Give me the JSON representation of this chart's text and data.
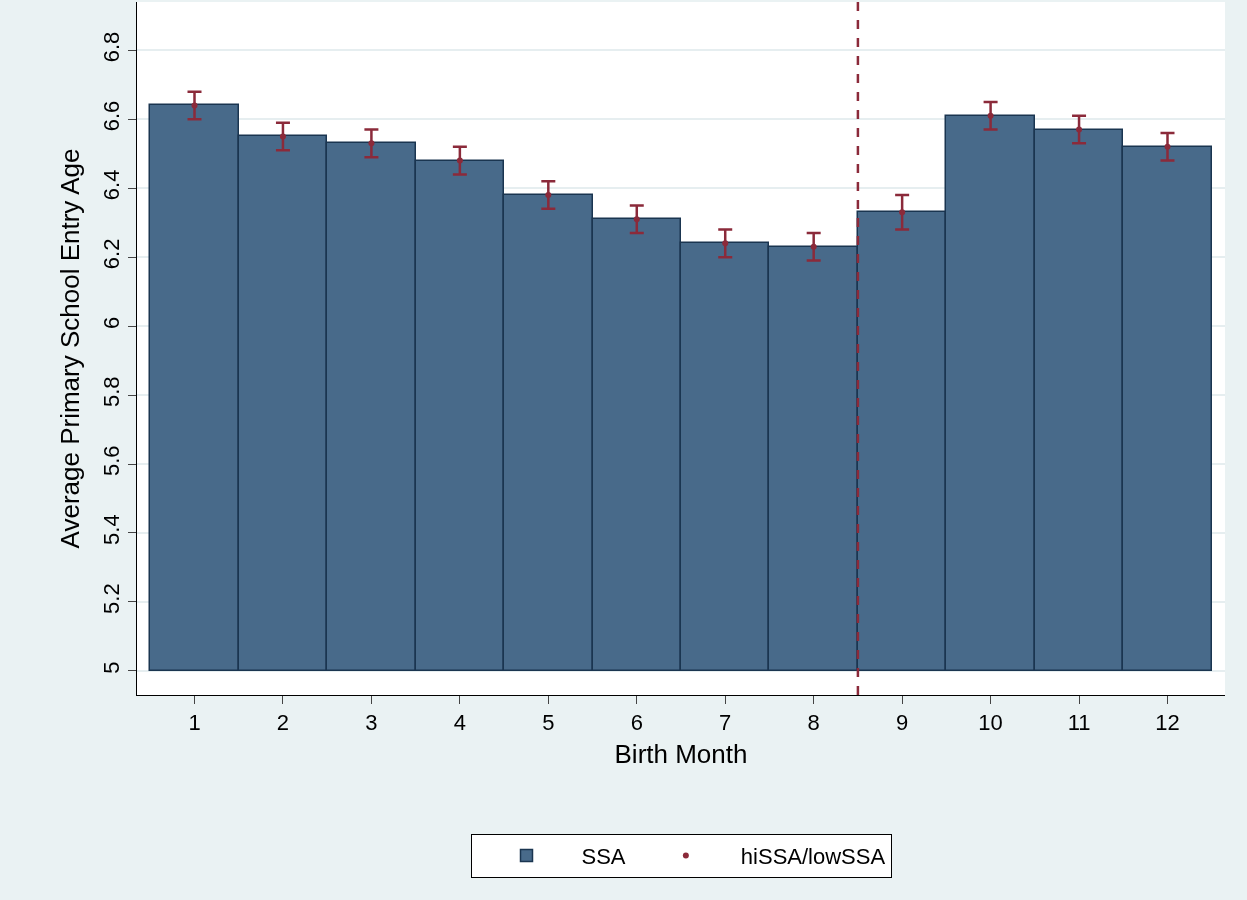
{
  "chart_data": {
    "type": "bar",
    "xlabel": "Birth Month",
    "ylabel": "Average Primary School Entry Age",
    "x": [
      1,
      2,
      3,
      4,
      5,
      6,
      7,
      8,
      9,
      10,
      11,
      12
    ],
    "series": [
      {
        "name": "SSA",
        "color": "#486a8a",
        "base": [
          5,
          5,
          5,
          5,
          5,
          5,
          5,
          5,
          5,
          5,
          5,
          5
        ],
        "values": [
          1.64,
          1.55,
          1.53,
          1.48,
          1.38,
          1.31,
          1.24,
          1.23,
          1.33,
          1.61,
          1.57,
          1.52
        ]
      },
      {
        "name": "hiSSA/lowSSA",
        "type": "scatter",
        "color": "#8b2a3a",
        "values": [
          6.64,
          6.55,
          6.53,
          6.48,
          6.38,
          6.31,
          6.24,
          6.23,
          6.33,
          6.61,
          6.57,
          6.52
        ],
        "errors": [
          0.04,
          0.04,
          0.04,
          0.04,
          0.04,
          0.04,
          0.04,
          0.04,
          0.05,
          0.04,
          0.04,
          0.04
        ]
      }
    ],
    "xlim": [
      0.35,
      12.65
    ],
    "xticks": [
      1,
      2,
      3,
      4,
      5,
      6,
      7,
      8,
      9,
      10,
      11,
      12
    ],
    "ylim": [
      4.93,
      6.94
    ],
    "yticks": [
      5,
      5.2,
      5.4,
      5.6,
      5.8,
      6,
      6.2,
      6.4,
      6.6,
      6.8
    ],
    "ref_lines": [
      {
        "axis": "x",
        "value": 8.5,
        "color": "#8b2a3a",
        "line_style": "dashed"
      }
    ],
    "grid": "y",
    "legend": "bottom"
  }
}
